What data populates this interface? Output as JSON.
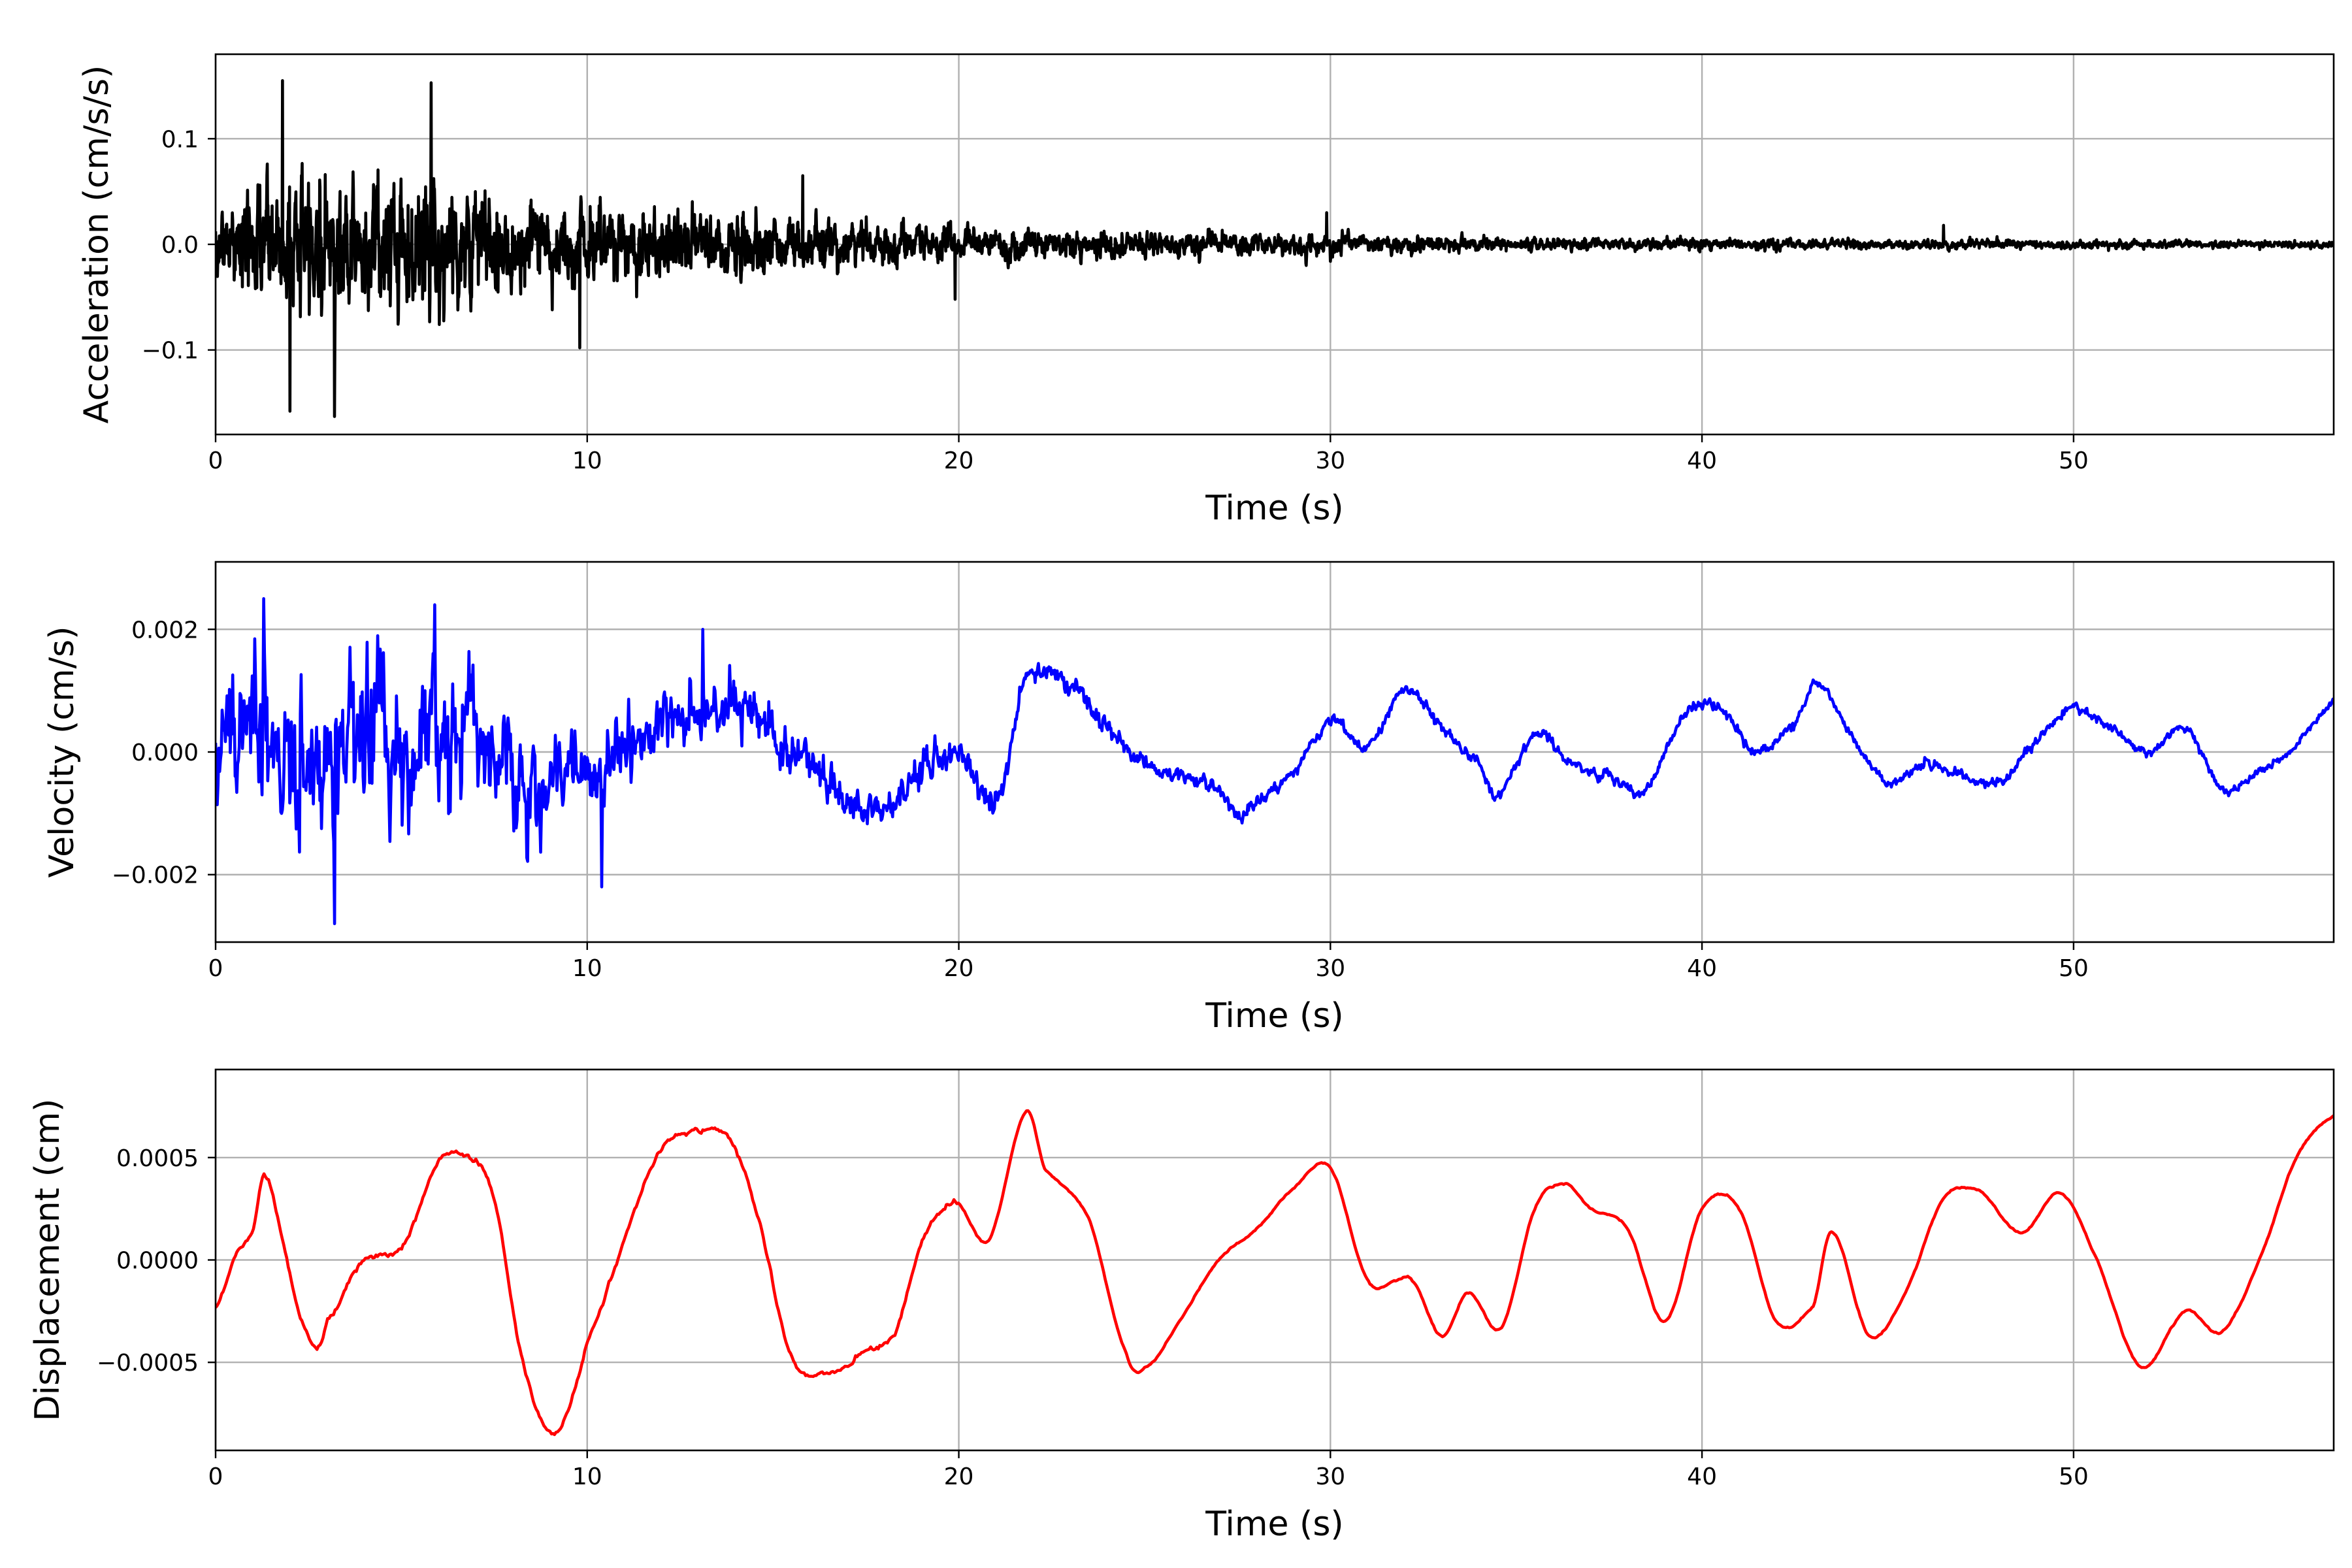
{
  "chart_data": [
    {
      "type": "line",
      "xlabel": "Time (s)",
      "ylabel": "Acceleration (cm/s/s)",
      "xlim": [
        0,
        57
      ],
      "ylim": [
        -0.18,
        0.18
      ],
      "xticks": [
        0,
        10,
        20,
        30,
        40,
        50
      ],
      "xtick_labels": [
        "0",
        "10",
        "20",
        "30",
        "40",
        "50"
      ],
      "yticks": [
        -0.1,
        0.0,
        0.1
      ],
      "ytick_labels": [
        "−0.1",
        "0.0",
        "0.1"
      ],
      "grid": true,
      "color": "#000000",
      "envelope": {
        "x": [
          0,
          2,
          4,
          6,
          8,
          10,
          13,
          16,
          20,
          25,
          30,
          35,
          40,
          45,
          50,
          57
        ],
        "amplitude": [
          0.07,
          0.15,
          0.13,
          0.14,
          0.09,
          0.08,
          0.06,
          0.05,
          0.03,
          0.025,
          0.018,
          0.014,
          0.011,
          0.009,
          0.008,
          0.007
        ]
      },
      "peaks": [
        {
          "x": 1.8,
          "y": 0.155
        },
        {
          "x": 3.2,
          "y": -0.163
        },
        {
          "x": 5.8,
          "y": 0.153
        },
        {
          "x": 2.0,
          "y": -0.158
        },
        {
          "x": 9.8,
          "y": -0.098
        },
        {
          "x": 15.8,
          "y": 0.065
        },
        {
          "x": 19.9,
          "y": -0.052
        },
        {
          "x": 29.9,
          "y": 0.03
        },
        {
          "x": 46.5,
          "y": 0.018
        }
      ]
    },
    {
      "type": "line",
      "xlabel": "Time (s)",
      "ylabel": "Velocity (cm/s)",
      "xlim": [
        0,
        57
      ],
      "ylim": [
        -0.0031,
        0.0031
      ],
      "xticks": [
        0,
        10,
        20,
        30,
        40,
        50
      ],
      "xtick_labels": [
        "0",
        "10",
        "20",
        "30",
        "40",
        "50"
      ],
      "yticks": [
        -0.002,
        0.0,
        0.002
      ],
      "ytick_labels": [
        "−0.002",
        "0.000",
        "0.002"
      ],
      "grid": true,
      "color": "#0000ff",
      "trend": {
        "x": [
          0,
          1,
          2,
          3,
          4,
          5,
          6,
          7,
          8,
          9,
          10,
          11,
          12,
          13,
          14,
          15,
          16,
          17,
          18,
          19,
          20,
          21,
          21.8,
          23,
          24,
          25,
          26,
          27,
          27.5,
          28.5,
          29,
          30,
          31,
          32,
          33,
          34,
          34.5,
          35.5,
          36.5,
          37.5,
          38.5,
          39.5,
          40.5,
          41.5,
          42.5,
          43.1,
          44,
          45,
          46,
          47,
          48,
          49,
          50,
          51,
          52,
          53,
          54,
          55,
          56,
          57
        ],
        "y": [
          -0.0002,
          0.0003,
          -0.0005,
          -0.0004,
          0.0002,
          0.0,
          0.0004,
          0.0002,
          -0.0006,
          -0.0007,
          -0.0003,
          0.0001,
          0.0004,
          0.0006,
          0.0008,
          0.0003,
          -0.0002,
          -0.0008,
          -0.0009,
          -0.0003,
          0.0001,
          -0.0008,
          0.0012,
          0.0011,
          0.0004,
          -0.0002,
          -0.0004,
          -0.0006,
          -0.001,
          -0.0006,
          -0.0003,
          0.0005,
          0.0001,
          0.001,
          0.0004,
          -0.0002,
          -0.0007,
          0.0003,
          -0.0002,
          -0.0004,
          -0.0006,
          0.0006,
          0.0007,
          0.0,
          0.0005,
          0.0011,
          0.0003,
          -0.0005,
          -0.0002,
          -0.0004,
          -0.0005,
          0.0002,
          0.0007,
          0.0004,
          0.0,
          0.0004,
          -0.0006,
          -0.0003,
          0.0001,
          0.0008
        ]
      },
      "noise_envelope": {
        "x": [
          0,
          2,
          4,
          6,
          8,
          10,
          12,
          14,
          17,
          20,
          22,
          25,
          30,
          57
        ],
        "amplitude": [
          0.0012,
          0.0016,
          0.0014,
          0.0014,
          0.0011,
          0.0009,
          0.0007,
          0.0006,
          0.0004,
          0.00035,
          0.00022,
          0.00016,
          0.00012,
          8e-05
        ]
      },
      "peaks": [
        {
          "x": 1.3,
          "y": 0.0025
        },
        {
          "x": 3.2,
          "y": -0.0028
        },
        {
          "x": 5.9,
          "y": 0.0024
        },
        {
          "x": 13.1,
          "y": 0.002
        },
        {
          "x": 10.4,
          "y": -0.0022
        }
      ]
    },
    {
      "type": "line",
      "xlabel": "Time (s)",
      "ylabel": "Displacement (cm)",
      "xlim": [
        0,
        57
      ],
      "ylim": [
        -0.00093,
        0.00093
      ],
      "xticks": [
        0,
        10,
        20,
        30,
        40,
        50
      ],
      "xtick_labels": [
        "0",
        "10",
        "20",
        "30",
        "40",
        "50"
      ],
      "yticks": [
        -0.0005,
        0.0,
        0.0005
      ],
      "ytick_labels": [
        "−0.0005",
        "0.0000",
        "0.0005"
      ],
      "grid": true,
      "color": "#ff0000",
      "x": [
        0,
        0.5,
        1.0,
        1.35,
        1.8,
        2.2,
        2.7,
        3.0,
        4.0,
        5.0,
        6.0,
        6.8,
        7.5,
        8.2,
        9.0,
        9.5,
        10.0,
        11.0,
        12.0,
        13.0,
        13.8,
        14.6,
        15.5,
        16.5,
        17.5,
        18.3,
        19.0,
        19.9,
        20.8,
        21.8,
        22.3,
        23.5,
        24.5,
        25.0,
        26.0,
        27.0,
        28.0,
        29.0,
        30.0,
        31.0,
        31.8,
        32.2,
        33.0,
        33.7,
        34.6,
        35.5,
        36.3,
        37.0,
        38.0,
        39.0,
        40.0,
        41.0,
        42.0,
        43.0,
        43.5,
        44.5,
        45.5,
        46.5,
        47.5,
        48.6,
        49.6,
        50.5,
        51.8,
        53.0,
        54.0,
        55.0,
        56.0,
        57.0
      ],
      "y": [
        -0.00023,
        0.0,
        0.00015,
        0.00042,
        0.0001,
        -0.00022,
        -0.00043,
        -0.0003,
        0.0,
        5e-05,
        0.00048,
        0.0005,
        0.0003,
        -0.00045,
        -0.00085,
        -0.00072,
        -0.0004,
        0.0001,
        0.00055,
        0.00062,
        0.0006,
        0.0002,
        -0.00048,
        -0.00055,
        -0.00045,
        -0.00035,
        0.0001,
        0.00028,
        0.0001,
        0.00072,
        0.00045,
        0.0002,
        -0.00045,
        -0.00053,
        -0.00028,
        0.0,
        0.00015,
        0.00035,
        0.00045,
        -0.0001,
        -0.0001,
        -0.0001,
        -0.00037,
        -0.00016,
        -0.00033,
        0.00025,
        0.00037,
        0.00025,
        0.00015,
        -0.0003,
        0.00025,
        0.00025,
        -0.0003,
        -0.00022,
        0.00014,
        -0.00037,
        -0.00015,
        0.0003,
        0.00033,
        0.00013,
        0.00033,
        5e-05,
        -0.00052,
        -0.00025,
        -0.00035,
        0.0,
        0.0005,
        0.0007
      ]
    }
  ]
}
